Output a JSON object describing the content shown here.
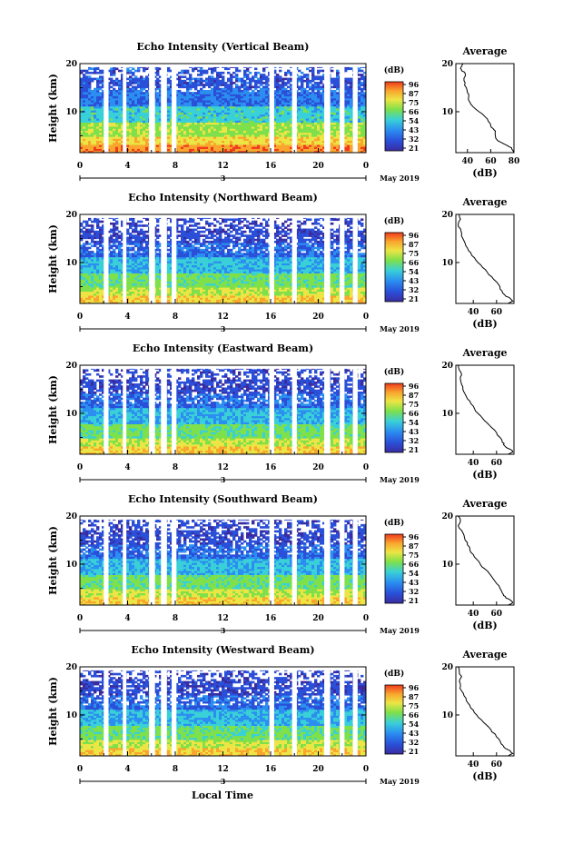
{
  "chart_data": {
    "type": "heatmap",
    "date_label": "May 2019",
    "day_label": "3",
    "xlabel": "Local Time",
    "ylabel": "Height (km)",
    "x_ticks": [
      "0",
      "4",
      "8",
      "12",
      "16",
      "20",
      "0"
    ],
    "y_ticks": [
      "10",
      "20"
    ],
    "xlim": [
      0,
      24
    ],
    "ylim": [
      1.5,
      20
    ],
    "colorbar": {
      "unit": "(dB)",
      "ticks": [
        "96",
        "87",
        "75",
        "66",
        "54",
        "43",
        "32",
        "21"
      ],
      "colors": [
        "#f03a1e",
        "#f9a52e",
        "#ece545",
        "#7ee04a",
        "#39d0d8",
        "#2b8ef0",
        "#2a4fd8",
        "#3a2ca0"
      ]
    },
    "gaps_hours": [
      [
        2.0,
        2.4
      ],
      [
        3.6,
        3.9
      ],
      [
        5.8,
        6.3
      ],
      [
        6.8,
        7.3
      ],
      [
        7.7,
        8.1
      ],
      [
        15.9,
        16.3
      ],
      [
        17.8,
        18.2
      ],
      [
        20.5,
        21.0
      ],
      [
        21.8,
        22.2
      ],
      [
        22.9,
        23.3
      ]
    ],
    "panels": [
      {
        "title": "Echo Intensity (Vertical Beam)",
        "profile_title": "Average",
        "profile_xlabel": "(dB)",
        "profile_xticks": [
          "40",
          "60",
          "80"
        ],
        "profile_xlim": [
          30,
          80
        ],
        "profile": [
          [
            20,
            36
          ],
          [
            19,
            34
          ],
          [
            18.5,
            35
          ],
          [
            18,
            38
          ],
          [
            17,
            37
          ],
          [
            16,
            38
          ],
          [
            15,
            39
          ],
          [
            14,
            40
          ],
          [
            13,
            41
          ],
          [
            12,
            42
          ],
          [
            11,
            45
          ],
          [
            10,
            50
          ],
          [
            9,
            55
          ],
          [
            8,
            58
          ],
          [
            7,
            60
          ],
          [
            6.5,
            62
          ],
          [
            6,
            64
          ],
          [
            5,
            64
          ],
          [
            4,
            66
          ],
          [
            3.5,
            70
          ],
          [
            3,
            74
          ],
          [
            2.5,
            78
          ],
          [
            2,
            79
          ],
          [
            1.5,
            80
          ]
        ]
      },
      {
        "title": "Echo Intensity (Northward Beam)",
        "profile_title": "Average",
        "profile_xlabel": "(dB)",
        "profile_xticks": [
          "40",
          "60"
        ],
        "profile_xlim": [
          25,
          75
        ],
        "profile": [
          [
            20,
            28
          ],
          [
            19,
            29
          ],
          [
            18,
            27
          ],
          [
            17,
            29
          ],
          [
            16,
            30
          ],
          [
            15,
            31
          ],
          [
            14,
            33
          ],
          [
            13,
            35
          ],
          [
            12,
            38
          ],
          [
            11,
            41
          ],
          [
            10,
            44
          ],
          [
            9,
            48
          ],
          [
            8,
            52
          ],
          [
            7,
            56
          ],
          [
            6,
            60
          ],
          [
            5,
            63
          ],
          [
            4,
            65
          ],
          [
            3.5,
            66
          ],
          [
            3,
            68
          ],
          [
            2.5,
            72
          ],
          [
            2,
            74
          ],
          [
            1.5,
            70
          ]
        ]
      },
      {
        "title": "Echo Intensity (Eastward Beam)",
        "profile_title": "Average",
        "profile_xlabel": "(dB)",
        "profile_xticks": [
          "40",
          "60"
        ],
        "profile_xlim": [
          25,
          75
        ],
        "profile": [
          [
            20,
            27
          ],
          [
            19,
            28
          ],
          [
            18,
            30
          ],
          [
            17,
            29
          ],
          [
            16,
            30
          ],
          [
            15,
            31
          ],
          [
            14,
            33
          ],
          [
            13,
            35
          ],
          [
            12,
            38
          ],
          [
            11,
            41
          ],
          [
            10,
            44
          ],
          [
            9,
            48
          ],
          [
            8,
            52
          ],
          [
            7,
            56
          ],
          [
            6,
            60
          ],
          [
            5,
            63
          ],
          [
            4,
            65
          ],
          [
            3.5,
            66
          ],
          [
            3,
            68
          ],
          [
            2.5,
            72
          ],
          [
            2,
            74
          ],
          [
            1.5,
            70
          ]
        ]
      },
      {
        "title": "Echo Intensity (Southward Beam)",
        "profile_title": "Average",
        "profile_xlabel": "(dB)",
        "profile_xticks": [
          "40",
          "60"
        ],
        "profile_xlim": [
          25,
          75
        ],
        "profile": [
          [
            20,
            27
          ],
          [
            19,
            29
          ],
          [
            18,
            27
          ],
          [
            17,
            30
          ],
          [
            16,
            32
          ],
          [
            15,
            33
          ],
          [
            14,
            35
          ],
          [
            13,
            37
          ],
          [
            12,
            40
          ],
          [
            11,
            43
          ],
          [
            10,
            46
          ],
          [
            9,
            50
          ],
          [
            8,
            54
          ],
          [
            7,
            57
          ],
          [
            6,
            60
          ],
          [
            5,
            63
          ],
          [
            4,
            65
          ],
          [
            3.5,
            66
          ],
          [
            3,
            68
          ],
          [
            2.5,
            72
          ],
          [
            2,
            74
          ],
          [
            1.5,
            70
          ]
        ]
      },
      {
        "title": "Echo Intensity (Westward Beam)",
        "profile_title": "Average",
        "profile_xlabel": "(dB)",
        "profile_xticks": [
          "40",
          "60"
        ],
        "profile_xlim": [
          25,
          75
        ],
        "profile": [
          [
            20,
            27
          ],
          [
            19,
            28
          ],
          [
            18,
            30
          ],
          [
            17,
            28
          ],
          [
            16,
            29
          ],
          [
            15,
            30
          ],
          [
            14,
            32
          ],
          [
            13,
            34
          ],
          [
            12,
            37
          ],
          [
            11,
            40
          ],
          [
            10,
            43
          ],
          [
            9,
            47
          ],
          [
            8,
            51
          ],
          [
            7,
            55
          ],
          [
            6,
            59
          ],
          [
            5,
            62
          ],
          [
            4,
            64
          ],
          [
            3.5,
            66
          ],
          [
            3,
            68
          ],
          [
            2.5,
            72
          ],
          [
            2,
            74
          ],
          [
            1.5,
            70
          ]
        ]
      }
    ]
  }
}
